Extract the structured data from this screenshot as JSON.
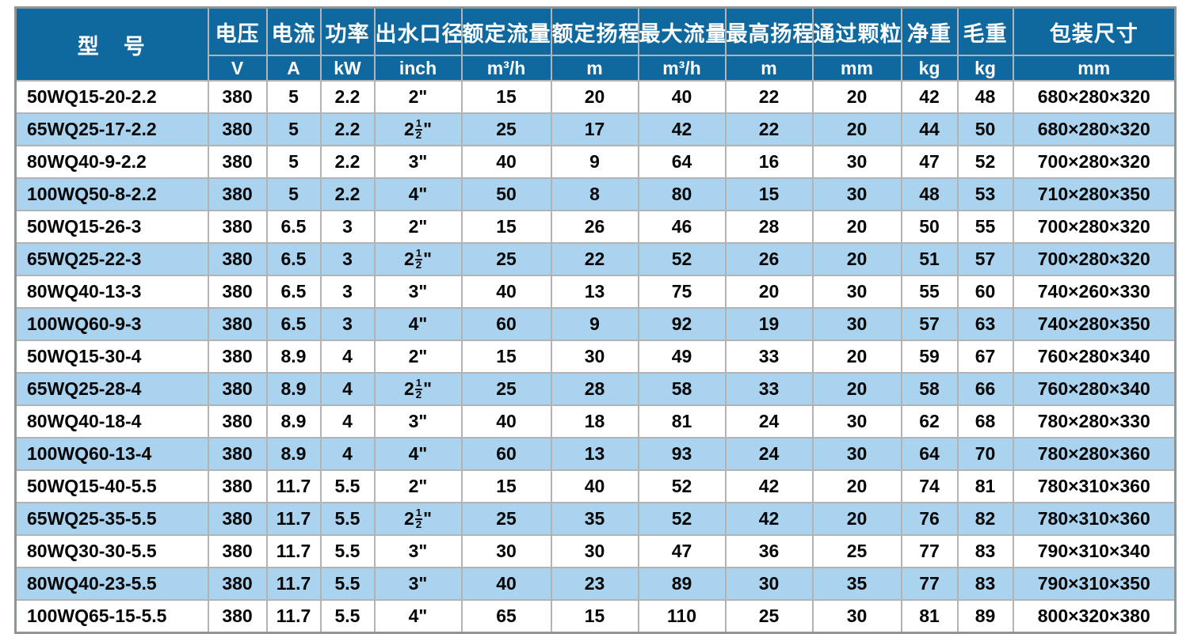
{
  "colors": {
    "header_bg": "#0f689e",
    "header_text": "#ffffff",
    "row_bg": "#ffffff",
    "row_alt_bg": "#a9d3ee",
    "grid_line": "#b3b3b3",
    "outer_border": "#8f9496",
    "body_text": "#050505"
  },
  "table": {
    "columns": [
      {
        "id": "model",
        "label": "型　号",
        "unit": ""
      },
      {
        "id": "voltage",
        "label": "电压",
        "unit": "V"
      },
      {
        "id": "current",
        "label": "电流",
        "unit": "A"
      },
      {
        "id": "power",
        "label": "功率",
        "unit": "kW"
      },
      {
        "id": "outlet",
        "label": "出水口径",
        "unit": "inch"
      },
      {
        "id": "rated_flow",
        "label": "额定流量",
        "unit": "m³/h"
      },
      {
        "id": "rated_head",
        "label": "额定扬程",
        "unit": "m"
      },
      {
        "id": "max_flow",
        "label": "最大流量",
        "unit": "m³/h"
      },
      {
        "id": "max_head",
        "label": "最高扬程",
        "unit": "m"
      },
      {
        "id": "particle",
        "label": "通过颗粒",
        "unit": "mm"
      },
      {
        "id": "net_weight",
        "label": "净重",
        "unit": "kg"
      },
      {
        "id": "gross_weight",
        "label": "毛重",
        "unit": "kg"
      },
      {
        "id": "package",
        "label": "包装尺寸",
        "unit": "mm"
      }
    ],
    "rows": [
      [
        "50WQ15-20-2.2",
        "380",
        "5",
        "2.2",
        "2\"",
        "15",
        "20",
        "40",
        "22",
        "20",
        "42",
        "48",
        "680×280×320"
      ],
      [
        "65WQ25-17-2.2",
        "380",
        "5",
        "2.2",
        "2½\"",
        "25",
        "17",
        "42",
        "22",
        "20",
        "44",
        "50",
        "680×280×320"
      ],
      [
        "80WQ40-9-2.2",
        "380",
        "5",
        "2.2",
        "3\"",
        "40",
        "9",
        "64",
        "16",
        "30",
        "47",
        "52",
        "700×280×320"
      ],
      [
        "100WQ50-8-2.2",
        "380",
        "5",
        "2.2",
        "4\"",
        "50",
        "8",
        "80",
        "15",
        "30",
        "48",
        "53",
        "710×280×350"
      ],
      [
        "50WQ15-26-3",
        "380",
        "6.5",
        "3",
        "2\"",
        "15",
        "26",
        "46",
        "28",
        "20",
        "50",
        "55",
        "700×280×320"
      ],
      [
        "65WQ25-22-3",
        "380",
        "6.5",
        "3",
        "2½\"",
        "25",
        "22",
        "52",
        "26",
        "20",
        "51",
        "57",
        "700×280×320"
      ],
      [
        "80WQ40-13-3",
        "380",
        "6.5",
        "3",
        "3\"",
        "40",
        "13",
        "75",
        "20",
        "30",
        "55",
        "60",
        "740×260×330"
      ],
      [
        "100WQ60-9-3",
        "380",
        "6.5",
        "3",
        "4\"",
        "60",
        "9",
        "92",
        "19",
        "30",
        "57",
        "63",
        "740×280×350"
      ],
      [
        "50WQ15-30-4",
        "380",
        "8.9",
        "4",
        "2\"",
        "15",
        "30",
        "49",
        "33",
        "20",
        "59",
        "67",
        "760×280×340"
      ],
      [
        "65WQ25-28-4",
        "380",
        "8.9",
        "4",
        "2½\"",
        "25",
        "28",
        "58",
        "33",
        "20",
        "58",
        "66",
        "760×280×340"
      ],
      [
        "80WQ40-18-4",
        "380",
        "8.9",
        "4",
        "3\"",
        "40",
        "18",
        "81",
        "24",
        "30",
        "62",
        "68",
        "780×280×330"
      ],
      [
        "100WQ60-13-4",
        "380",
        "8.9",
        "4",
        "4\"",
        "60",
        "13",
        "93",
        "24",
        "30",
        "64",
        "70",
        "780×280×360"
      ],
      [
        "50WQ15-40-5.5",
        "380",
        "11.7",
        "5.5",
        "2\"",
        "15",
        "40",
        "52",
        "42",
        "20",
        "74",
        "81",
        "780×310×360"
      ],
      [
        "65WQ25-35-5.5",
        "380",
        "11.7",
        "5.5",
        "2½\"",
        "25",
        "35",
        "52",
        "42",
        "20",
        "76",
        "82",
        "780×310×360"
      ],
      [
        "80WQ30-30-5.5",
        "380",
        "11.7",
        "5.5",
        "3\"",
        "30",
        "30",
        "47",
        "36",
        "25",
        "77",
        "83",
        "790×310×340"
      ],
      [
        "80WQ40-23-5.5",
        "380",
        "11.7",
        "5.5",
        "3\"",
        "40",
        "23",
        "89",
        "30",
        "35",
        "77",
        "83",
        "790×310×350"
      ],
      [
        "100WQ65-15-5.5",
        "380",
        "11.7",
        "5.5",
        "4\"",
        "65",
        "15",
        "110",
        "25",
        "30",
        "81",
        "89",
        "800×320×380"
      ]
    ]
  }
}
